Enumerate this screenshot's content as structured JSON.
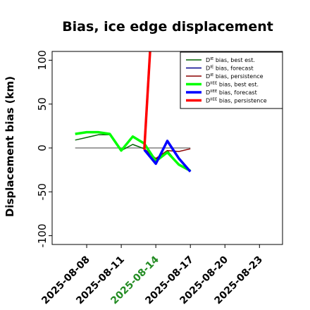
{
  "chart_data": {
    "type": "line",
    "title": "Bias, ice edge displacement",
    "xlabel": "",
    "ylabel": "Displacement bias (km)",
    "ylim": [
      -110,
      110
    ],
    "xlim": [
      "2025-08-05",
      "2025-08-25"
    ],
    "grid": false,
    "legend_position": "top-right",
    "x_ticks": [
      "2025-08-08",
      "2025-08-11",
      "2025-08-14",
      "2025-08-17",
      "2025-08-20",
      "2025-08-23"
    ],
    "x_tick_colors": [
      "#000000",
      "#000000",
      "#228b22",
      "#000000",
      "#000000",
      "#000000"
    ],
    "y_ticks": [
      -100,
      -50,
      0,
      50,
      100
    ],
    "reference_line": {
      "y": 0,
      "from": "2025-08-07",
      "to": "2025-08-17",
      "color": "#808080"
    },
    "series": [
      {
        "name": "D^IE bias, best est.",
        "color": "#006400",
        "width": 1.5,
        "x": [
          "2025-08-07",
          "2025-08-08",
          "2025-08-09",
          "2025-08-10",
          "2025-08-11",
          "2025-08-12",
          "2025-08-13",
          "2025-08-14",
          "2025-08-15",
          "2025-08-16",
          "2025-08-17"
        ],
        "y": [
          9,
          12,
          15,
          15,
          -3,
          4,
          -1,
          -13,
          -3,
          -19,
          -26
        ]
      },
      {
        "name": "D^IE bias, forecast",
        "color": "#00008b",
        "width": 1.5,
        "x": [
          "2025-08-13",
          "2025-08-14",
          "2025-08-15",
          "2025-08-16",
          "2025-08-17"
        ],
        "y": [
          -1,
          -18,
          8,
          -13,
          -26
        ]
      },
      {
        "name": "D^IE bias, persistence",
        "color": "#8b0000",
        "width": 1.5,
        "x": [
          "2025-08-13",
          "2025-08-14",
          "2025-08-15",
          "2025-08-16",
          "2025-08-17"
        ],
        "y": [
          -1,
          -12,
          -3,
          -4,
          -1
        ]
      },
      {
        "name": "D^IIEE bias, best est.",
        "color": "#00ff00",
        "width": 3.5,
        "x": [
          "2025-08-07",
          "2025-08-08",
          "2025-08-09",
          "2025-08-10",
          "2025-08-11",
          "2025-08-12",
          "2025-08-13",
          "2025-08-14",
          "2025-08-15",
          "2025-08-16",
          "2025-08-17"
        ],
        "y": [
          16,
          18,
          18,
          16,
          -3,
          13,
          5,
          -15,
          -5,
          -19,
          -26
        ]
      },
      {
        "name": "D^IIEE bias, forecast",
        "color": "#0000ff",
        "width": 3.5,
        "x": [
          "2025-08-13",
          "2025-08-14",
          "2025-08-15",
          "2025-08-16",
          "2025-08-17"
        ],
        "y": [
          -2,
          -18,
          8,
          -12,
          -27
        ]
      },
      {
        "name": "D^IIEE bias, persistence",
        "color": "#ff0000",
        "width": 3.5,
        "x": [
          "2025-08-13",
          "2025-08-13.5"
        ],
        "y": [
          -2,
          110
        ]
      }
    ]
  }
}
